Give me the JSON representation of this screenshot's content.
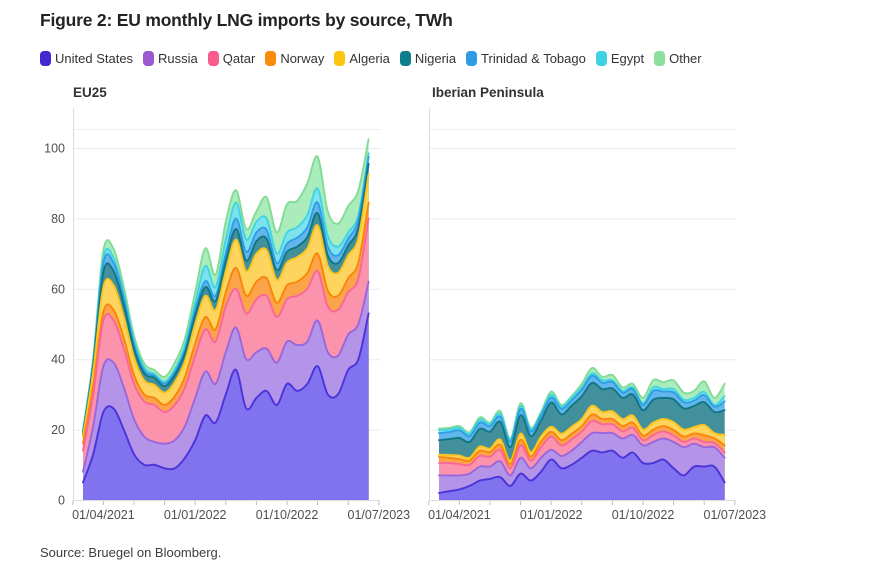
{
  "figure": {
    "title": "Figure 2: EU monthly LNG imports by source, TWh",
    "source": "Source: Bruegel on Bloomberg."
  },
  "legend": [
    {
      "label": "United States",
      "swatch": "#4228cf",
      "fill": "#8172ef",
      "stroke": "#4c33d9"
    },
    {
      "label": "Russia",
      "swatch": "#9b5ad2",
      "fill": "#b394e9",
      "stroke": "#9a66dd"
    },
    {
      "label": "Qatar",
      "swatch": "#f65d8d",
      "fill": "#fb93ac",
      "stroke": "#f7679c"
    },
    {
      "label": "Norway",
      "swatch": "#fb8b0c",
      "fill": "#fca44a",
      "stroke": "#fa8508"
    },
    {
      "label": "Algeria",
      "swatch": "#fdc40f",
      "fill": "#fdd45e",
      "stroke": "#fcc41c"
    },
    {
      "label": "Nigeria",
      "swatch": "#0d7d8a",
      "fill": "#41909b",
      "stroke": "#117683"
    },
    {
      "label": "Trinidad & Tobago",
      "swatch": "#2d9ce3",
      "fill": "#63b6ec",
      "stroke": "#2f9ee2"
    },
    {
      "label": "Egypt",
      "swatch": "#3ed2e2",
      "fill": "#7ce2ee",
      "stroke": "#41d4e2"
    },
    {
      "label": "Other",
      "swatch": "#8ddf9d",
      "fill": "#abecbd",
      "stroke": "#82dc96"
    }
  ],
  "axes": {
    "y_ticks": [
      0,
      20,
      40,
      60,
      80,
      100
    ],
    "x_tick_labels": [
      "01/04/2021",
      "01/01/2022",
      "01/10/2022",
      "01/07/2023"
    ]
  },
  "chart_data": [
    {
      "type": "area",
      "stacked": true,
      "title": "EU25",
      "xlabel": "",
      "ylabel": "TWh",
      "ylim": [
        0,
        106
      ],
      "grid": true,
      "x_tick_labels": [
        "01/04/2021",
        "01/01/2022",
        "01/10/2022",
        "01/07/2023"
      ],
      "categories": [
        "2021-02",
        "2021-03",
        "2021-04",
        "2021-05",
        "2021-06",
        "2021-07",
        "2021-08",
        "2021-09",
        "2021-10",
        "2021-11",
        "2021-12",
        "2022-01",
        "2022-02",
        "2022-03",
        "2022-04",
        "2022-05",
        "2022-06",
        "2022-07",
        "2022-08",
        "2022-09",
        "2022-10",
        "2022-11",
        "2022-12",
        "2023-01",
        "2023-02",
        "2023-03",
        "2023-04",
        "2023-05",
        "2023-06"
      ],
      "series": [
        {
          "name": "United States",
          "values": [
            5,
            13,
            25,
            26,
            20,
            13,
            10,
            10,
            9,
            9,
            12,
            17,
            24,
            22,
            30,
            37,
            26,
            29,
            31,
            27,
            33,
            31,
            33,
            38,
            30,
            30,
            37,
            40,
            53
          ]
        },
        {
          "name": "Russia",
          "values": [
            3,
            8,
            13,
            13,
            12,
            10,
            8,
            6.5,
            7,
            8,
            9,
            12,
            12.5,
            11,
            12,
            12,
            14,
            13,
            12,
            12,
            12,
            13,
            12,
            13,
            12,
            11,
            10,
            10,
            9
          ]
        },
        {
          "name": "Qatar",
          "values": [
            6,
            9,
            13,
            12,
            11,
            10,
            10,
            10.5,
            9,
            10,
            11,
            12,
            12,
            12,
            13,
            11,
            13,
            15,
            15,
            13,
            12,
            14,
            15,
            14,
            13,
            13,
            12,
            13,
            18
          ]
        },
        {
          "name": "Norway",
          "values": [
            2,
            2.5,
            2.5,
            3,
            3,
            2.5,
            2,
            2,
            2,
            2.5,
            3,
            3.5,
            3.5,
            3.5,
            4,
            6,
            5,
            5,
            5,
            4,
            4,
            4,
            4.5,
            5,
            4.5,
            4,
            4,
            4.5,
            4.5
          ]
        },
        {
          "name": "Algeria",
          "values": [
            2,
            4,
            7,
            7,
            6,
            5,
            4,
            3.7,
            3.5,
            4,
            4.5,
            5.5,
            6,
            5.5,
            6,
            8,
            7,
            8,
            8,
            6.5,
            6.5,
            7,
            7,
            8,
            7,
            6.5,
            6.5,
            7,
            8
          ]
        },
        {
          "name": "Nigeria",
          "values": [
            0.7,
            1.5,
            4.3,
            4,
            3.5,
            2.5,
            2,
            2,
            1.8,
            2,
            2.2,
            2.5,
            2.5,
            2.5,
            3,
            3,
            3,
            3.5,
            3.2,
            2.8,
            3,
            3,
            3.2,
            3.5,
            3,
            2.8,
            2.8,
            3,
            3
          ]
        },
        {
          "name": "Trinidad & Tobago",
          "values": [
            0.4,
            0.8,
            2.5,
            2.3,
            1.8,
            1.2,
            0.8,
            0.6,
            0.7,
            0.8,
            1,
            1.5,
            1.7,
            1.5,
            2,
            3,
            2.5,
            2.5,
            2.5,
            2,
            2.3,
            2.5,
            2.8,
            3,
            2.5,
            2.2,
            2,
            2.2,
            2
          ]
        },
        {
          "name": "Egypt",
          "values": [
            0.4,
            0.7,
            1.5,
            1.5,
            1.2,
            1,
            0.8,
            0.5,
            0.6,
            0.8,
            1.3,
            2,
            4.3,
            2.5,
            4,
            4.5,
            3.5,
            3,
            3.3,
            2.7,
            3.2,
            3,
            3.5,
            4,
            3,
            2.5,
            1.7,
            1.3,
            1
          ]
        },
        {
          "name": "Other",
          "values": [
            0.5,
            0.8,
            2.2,
            2.5,
            2,
            1.5,
            1.2,
            1.1,
            1.4,
            1.9,
            2,
            3,
            5,
            3.5,
            5,
            3.5,
            3,
            3,
            6,
            6,
            8,
            7.5,
            9,
            9,
            7,
            6.5,
            7.5,
            7,
            4
          ]
        }
      ]
    },
    {
      "type": "area",
      "stacked": true,
      "title": "Iberian Peninsula",
      "xlabel": "",
      "ylabel": "TWh",
      "ylim": [
        0,
        106
      ],
      "grid": true,
      "x_tick_labels": [
        "01/04/2021",
        "01/01/2022",
        "01/10/2022",
        "01/07/2023"
      ],
      "categories": [
        "2021-02",
        "2021-03",
        "2021-04",
        "2021-05",
        "2021-06",
        "2021-07",
        "2021-08",
        "2021-09",
        "2021-10",
        "2021-11",
        "2021-12",
        "2022-01",
        "2022-02",
        "2022-03",
        "2022-04",
        "2022-05",
        "2022-06",
        "2022-07",
        "2022-08",
        "2022-09",
        "2022-10",
        "2022-11",
        "2022-12",
        "2023-01",
        "2023-02",
        "2023-03",
        "2023-04",
        "2023-05",
        "2023-06"
      ],
      "series": [
        {
          "name": "United States",
          "values": [
            2,
            2.5,
            3,
            4,
            5.5,
            6,
            6.5,
            4,
            7.5,
            5.5,
            8,
            11.5,
            9,
            10,
            12,
            14,
            13.5,
            14,
            12,
            13.5,
            10.5,
            10.5,
            11.5,
            9,
            7,
            9.5,
            9.5,
            9.5,
            5
          ]
        },
        {
          "name": "Russia",
          "values": [
            5,
            4.5,
            4,
            3.5,
            4,
            3.5,
            4.5,
            3,
            4.5,
            3.5,
            4,
            2.8,
            3.5,
            4,
            4.5,
            5,
            5.5,
            5,
            5.5,
            5,
            5,
            6,
            6,
            7.5,
            8,
            6.5,
            5.5,
            5.5,
            7
          ]
        },
        {
          "name": "Qatar",
          "values": [
            3.5,
            3.5,
            3.2,
            2.5,
            3,
            2.8,
            3.2,
            2,
            3.5,
            2.2,
            3,
            3.7,
            3,
            3.2,
            3,
            3.5,
            2.5,
            2.5,
            2,
            2,
            1.5,
            2,
            2,
            1.8,
            1.5,
            1.5,
            1.5,
            1.2,
            1.5
          ]
        },
        {
          "name": "Norway",
          "values": [
            1.7,
            1.5,
            1.4,
            1.2,
            1.5,
            1.3,
            1.5,
            1.2,
            1.6,
            1.2,
            1.5,
            1.4,
            1.5,
            1.6,
            1.5,
            1.8,
            1.5,
            1.5,
            1.5,
            1.5,
            1.3,
            1.5,
            1.5,
            1.6,
            1.5,
            1.4,
            1.9,
            1.3,
            2
          ]
        },
        {
          "name": "Algeria",
          "values": [
            0.6,
            0.8,
            1,
            0.8,
            1.2,
            1,
            1.5,
            1,
            1.8,
            1.2,
            1.5,
            1.4,
            1.8,
            2,
            2,
            2.5,
            2,
            2.2,
            2,
            2,
            1.7,
            2,
            2,
            2.2,
            2,
            1.8,
            2.9,
            1.5,
            3
          ]
        },
        {
          "name": "Nigeria",
          "values": [
            4.2,
            4.5,
            5,
            4.5,
            5,
            4.8,
            5,
            3.8,
            5.2,
            4.5,
            4.5,
            6.9,
            5.5,
            6,
            6.5,
            6.5,
            6.5,
            6.5,
            6,
            6,
            5.5,
            6.5,
            6,
            6.5,
            6,
            6,
            6.5,
            6,
            7
          ]
        },
        {
          "name": "Trinidad & Tobago",
          "values": [
            2,
            2,
            2.2,
            1.6,
            1.8,
            1.5,
            1.5,
            1.5,
            1.8,
            1.4,
            1.5,
            1.4,
            1.6,
            1.5,
            1.8,
            2,
            1.8,
            1.8,
            1.5,
            1.5,
            1.5,
            2.5,
            1.8,
            2,
            1.8,
            1.5,
            2,
            1.5,
            2.5
          ]
        },
        {
          "name": "Egypt",
          "values": [
            0.8,
            0.7,
            0.7,
            0.6,
            0.8,
            0.6,
            0.8,
            0.5,
            0.8,
            0.5,
            0.5,
            0.8,
            0.6,
            0.7,
            0.7,
            0.7,
            0.7,
            0.5,
            0.5,
            0.5,
            0.5,
            1,
            0.7,
            0.9,
            0.7,
            0.8,
            0.9,
            0.5,
            1.5
          ]
        },
        {
          "name": "Other",
          "values": [
            0.5,
            0.5,
            0.5,
            0.5,
            0.7,
            0.5,
            0.8,
            0.5,
            0.8,
            0.5,
            0.5,
            0.9,
            0.5,
            0.5,
            1,
            1.5,
            1,
            1.5,
            1,
            1,
            1.5,
            2,
            2,
            2.5,
            2,
            2,
            3,
            2,
            3.5
          ]
        }
      ]
    }
  ]
}
